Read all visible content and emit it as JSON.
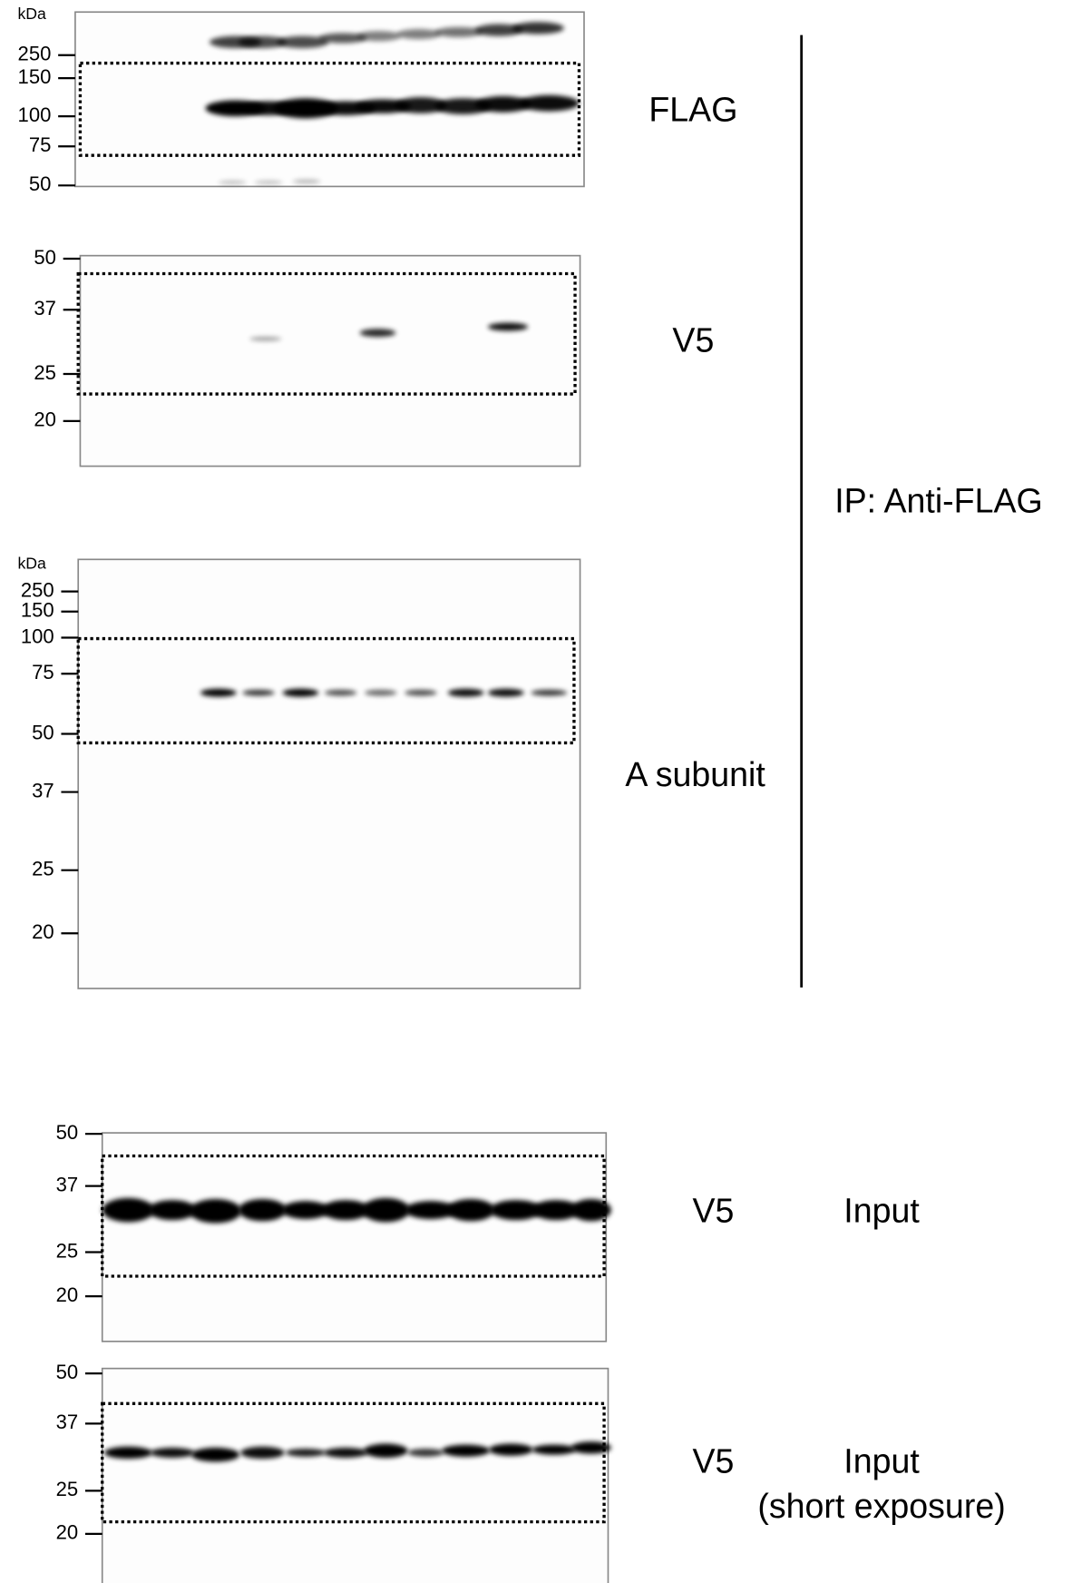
{
  "panels": [
    {
      "unit": "kDa",
      "markers": [
        "250",
        "150",
        "100",
        "75",
        "50"
      ],
      "label": "FLAG"
    },
    {
      "markers": [
        "50",
        "37",
        "25",
        "20"
      ],
      "label": "V5"
    },
    {
      "unit": "kDa",
      "markers": [
        "250",
        "150",
        "100",
        "75",
        "50",
        "37",
        "25",
        "20"
      ],
      "label": "A subunit"
    },
    {
      "markers": [
        "50",
        "37",
        "25",
        "20"
      ],
      "label": "V5",
      "group": "Input"
    },
    {
      "markers": [
        "50",
        "37",
        "25",
        "20"
      ],
      "label": "V5",
      "group": "Input",
      "note": "(short exposure)"
    }
  ],
  "bracket_label": "IP: Anti-FLAG"
}
